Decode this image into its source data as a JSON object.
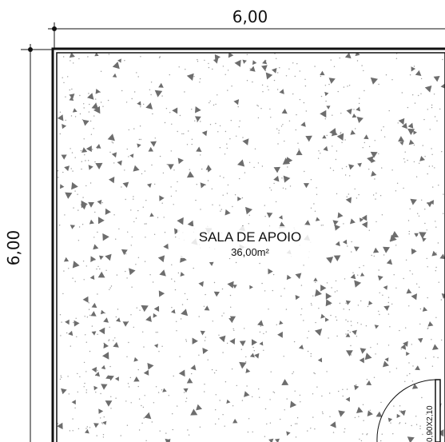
{
  "drawing": {
    "top_dimension": "6,00",
    "left_dimension": "6,00",
    "room_name": "SALA DE APOIO",
    "room_area": "36,00m²",
    "door_label": "0,90X2,10"
  },
  "colors": {
    "line": "#111111",
    "hatch_triangle": "#6d6d6d",
    "hatch_dot": "#9a9a9a",
    "background": "#ffffff"
  },
  "hatch": {
    "pattern": "concrete",
    "seed": 17
  }
}
